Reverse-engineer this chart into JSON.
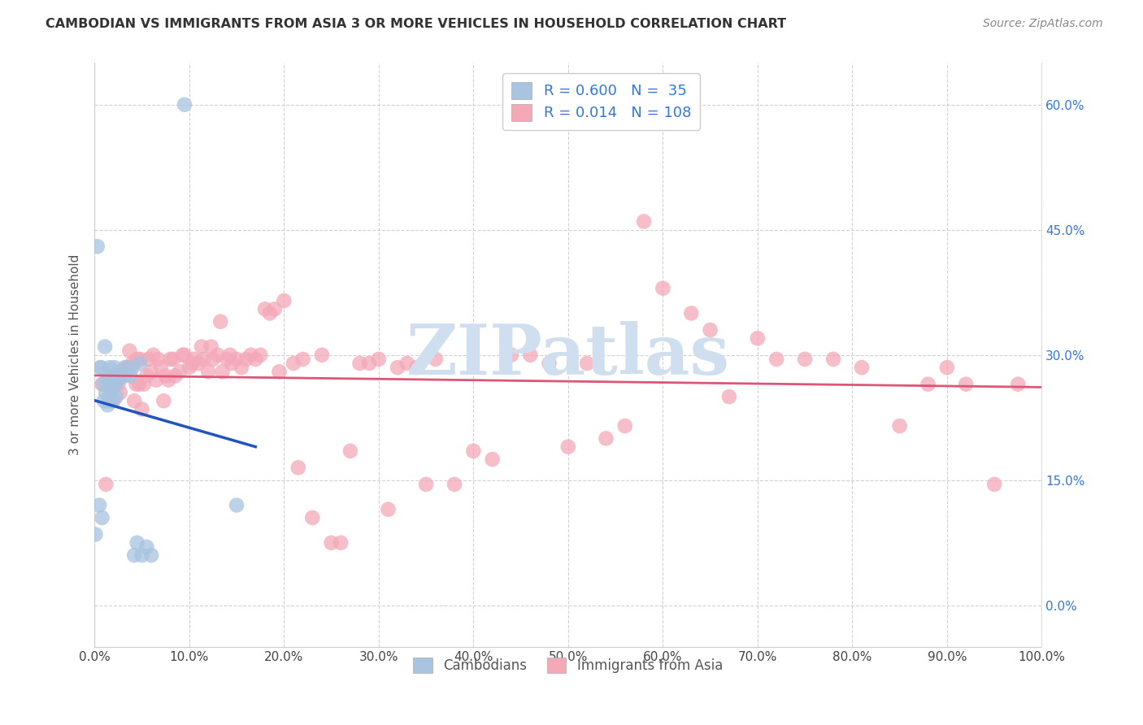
{
  "title": "CAMBODIAN VS IMMIGRANTS FROM ASIA 3 OR MORE VEHICLES IN HOUSEHOLD CORRELATION CHART",
  "source": "Source: ZipAtlas.com",
  "ylabel": "3 or more Vehicles in Household",
  "xlim": [
    0.0,
    1.0
  ],
  "ylim": [
    -0.05,
    0.65
  ],
  "yticks": [
    0.0,
    0.15,
    0.3,
    0.45,
    0.6
  ],
  "xticks": [
    0.0,
    0.1,
    0.2,
    0.3,
    0.4,
    0.5,
    0.6,
    0.7,
    0.8,
    0.9,
    1.0
  ],
  "blue_color": "#a8c4e0",
  "pink_color": "#f4a8b8",
  "blue_line_color": "#2255bb",
  "pink_line_color": "#dd5577",
  "legend_text_color": "#3377dd",
  "watermark": "ZIPatlas",
  "watermark_color": "#d0dff0",
  "R_blue": 0.6,
  "N_blue": 35,
  "R_pink": 0.014,
  "N_pink": 108,
  "blue_x": [
    0.001,
    0.003,
    0.005,
    0.006,
    0.007,
    0.008,
    0.009,
    0.01,
    0.011,
    0.012,
    0.013,
    0.014,
    0.015,
    0.016,
    0.017,
    0.018,
    0.019,
    0.02,
    0.021,
    0.022,
    0.023,
    0.025,
    0.028,
    0.03,
    0.032,
    0.038,
    0.04,
    0.042,
    0.045,
    0.048,
    0.05,
    0.055,
    0.06,
    0.095,
    0.15
  ],
  "blue_y": [
    0.085,
    0.43,
    0.12,
    0.285,
    0.285,
    0.105,
    0.265,
    0.245,
    0.31,
    0.255,
    0.27,
    0.24,
    0.245,
    0.285,
    0.255,
    0.245,
    0.26,
    0.275,
    0.285,
    0.265,
    0.25,
    0.27,
    0.28,
    0.275,
    0.285,
    0.275,
    0.285,
    0.06,
    0.075,
    0.29,
    0.06,
    0.07,
    0.06,
    0.6,
    0.12
  ],
  "pink_x": [
    0.008,
    0.012,
    0.015,
    0.018,
    0.02,
    0.022,
    0.025,
    0.027,
    0.028,
    0.03,
    0.032,
    0.034,
    0.035,
    0.037,
    0.038,
    0.04,
    0.042,
    0.044,
    0.045,
    0.047,
    0.048,
    0.05,
    0.052,
    0.055,
    0.057,
    0.06,
    0.062,
    0.065,
    0.067,
    0.07,
    0.073,
    0.075,
    0.078,
    0.08,
    0.083,
    0.085,
    0.09,
    0.093,
    0.095,
    0.1,
    0.103,
    0.105,
    0.11,
    0.113,
    0.115,
    0.12,
    0.123,
    0.125,
    0.13,
    0.133,
    0.135,
    0.14,
    0.143,
    0.145,
    0.15,
    0.155,
    0.16,
    0.165,
    0.17,
    0.175,
    0.18,
    0.185,
    0.19,
    0.195,
    0.2,
    0.21,
    0.215,
    0.22,
    0.23,
    0.24,
    0.25,
    0.26,
    0.27,
    0.28,
    0.29,
    0.3,
    0.31,
    0.32,
    0.33,
    0.34,
    0.35,
    0.36,
    0.38,
    0.4,
    0.42,
    0.44,
    0.46,
    0.48,
    0.5,
    0.52,
    0.54,
    0.56,
    0.58,
    0.6,
    0.63,
    0.65,
    0.67,
    0.7,
    0.72,
    0.75,
    0.78,
    0.81,
    0.85,
    0.88,
    0.9,
    0.92,
    0.95,
    0.975
  ],
  "pink_y": [
    0.265,
    0.145,
    0.26,
    0.275,
    0.245,
    0.27,
    0.265,
    0.255,
    0.28,
    0.28,
    0.275,
    0.285,
    0.285,
    0.305,
    0.285,
    0.29,
    0.245,
    0.265,
    0.295,
    0.265,
    0.295,
    0.235,
    0.265,
    0.275,
    0.295,
    0.28,
    0.3,
    0.27,
    0.295,
    0.285,
    0.245,
    0.275,
    0.27,
    0.295,
    0.295,
    0.275,
    0.28,
    0.3,
    0.3,
    0.285,
    0.29,
    0.295,
    0.29,
    0.31,
    0.295,
    0.28,
    0.31,
    0.295,
    0.3,
    0.34,
    0.28,
    0.295,
    0.3,
    0.29,
    0.295,
    0.285,
    0.295,
    0.3,
    0.295,
    0.3,
    0.355,
    0.35,
    0.355,
    0.28,
    0.365,
    0.29,
    0.165,
    0.295,
    0.105,
    0.3,
    0.075,
    0.075,
    0.185,
    0.29,
    0.29,
    0.295,
    0.115,
    0.285,
    0.29,
    0.285,
    0.145,
    0.295,
    0.145,
    0.185,
    0.175,
    0.3,
    0.3,
    0.29,
    0.19,
    0.29,
    0.2,
    0.215,
    0.46,
    0.38,
    0.35,
    0.33,
    0.25,
    0.32,
    0.295,
    0.295,
    0.295,
    0.285,
    0.215,
    0.265,
    0.285,
    0.265,
    0.145,
    0.265
  ]
}
